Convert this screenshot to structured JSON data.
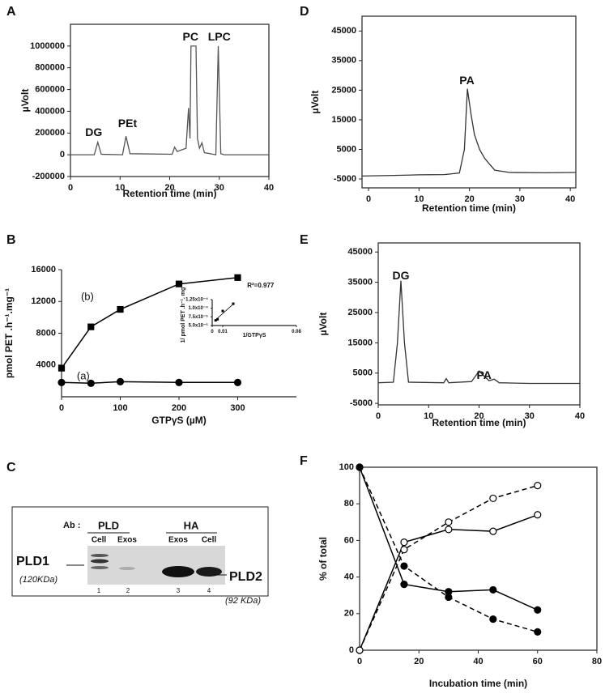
{
  "chart_data": [
    {
      "type": "line",
      "panel": "A",
      "xlabel": "Retention time (min)",
      "ylabel": "µVolt",
      "frame": true,
      "xlim": [
        0,
        40
      ],
      "ylim": [
        -200000,
        1200000
      ],
      "xticks": [
        0,
        10,
        20,
        30,
        40
      ],
      "yticks": [
        -200000,
        0,
        200000,
        400000,
        600000,
        800000,
        1000000
      ],
      "color": "#555555",
      "x": [
        0,
        4.8,
        5.5,
        6.2,
        10.5,
        11.2,
        12,
        20.5,
        21,
        21.5,
        23.3,
        23.8,
        24.1,
        24.3,
        24.6,
        25.3,
        25.6,
        26,
        26.5,
        27,
        29.3,
        29.8,
        30.3,
        31,
        40
      ],
      "values": [
        0,
        0,
        115000,
        5000,
        0,
        170000,
        10000,
        5000,
        70000,
        30000,
        60000,
        430000,
        150000,
        1000000,
        1000000,
        1000000,
        150000,
        60000,
        110000,
        20000,
        0,
        1000000,
        10000,
        0,
        0
      ],
      "annotations": [
        {
          "text": "DG",
          "x": 4.7,
          "y": 200000
        },
        {
          "text": "PEt",
          "x": 11.5,
          "y": 280000
        },
        {
          "text": "PC",
          "x": 24.2,
          "y": 1080000
        },
        {
          "text": "LPC",
          "x": 30,
          "y": 1080000
        }
      ]
    },
    {
      "type": "line",
      "panel": "B",
      "xlabel": "GTPγS  (µM)",
      "ylabel": "pmol PET .h⁻¹.mg⁻¹",
      "frame": false,
      "xlim": [
        0,
        400
      ],
      "ylim": [
        0,
        16000
      ],
      "xticks": [
        0,
        100,
        200,
        300
      ],
      "yticks": [
        4000,
        8000,
        12000,
        16000
      ],
      "x": [
        0,
        50,
        100,
        200,
        300
      ],
      "series": [
        {
          "color": "#000000",
          "marker": "square",
          "marker_fill": "#000000",
          "dash": false,
          "values": [
            3600,
            8800,
            11000,
            14200,
            15000
          ]
        },
        {
          "color": "#000000",
          "marker": "circle",
          "marker_fill": "#000000",
          "dash": false,
          "values": [
            1800,
            1700,
            1900,
            1800,
            1800
          ]
        }
      ],
      "annotations": [
        {
          "text": "(a)",
          "x": 37,
          "y": 2550
        },
        {
          "text": "(b)",
          "x": 44,
          "y": 12550
        }
      ]
    },
    {
      "type": "scatter",
      "xlabel": "1/GTPγS",
      "ylabel": "1/ pmol PET .h⁻¹. mg⁻¹",
      "frame": false,
      "xlim": [
        0,
        0.08
      ],
      "ylim": [
        5e-05,
        0.000125
      ],
      "xticks": [
        0,
        0.01,
        0.08
      ],
      "yticks": [
        {
          "value": 5e-05,
          "label": "5.0x10⁻⁵"
        },
        {
          "value": 7.5e-05,
          "label": "7.5x10⁻⁵"
        },
        {
          "value": 0.0001,
          "label": "1.0x10⁻⁴"
        },
        {
          "value": 0.000125,
          "label": "1.25x10⁻⁴"
        }
      ],
      "color": "#000000",
      "x": [
        0.0033,
        0.005,
        0.01,
        0.02
      ],
      "values": [
        6.5e-05,
        6.8e-05,
        9.2e-05,
        0.000113
      ],
      "fit": {
        "x": [
          0.002,
          0.021
        ],
        "values": [
          6.3e-05,
          0.000115
        ]
      },
      "annotations": [
        {
          "text": "R²=0.977",
          "x": 0.046,
          "y": 0.000165
        }
      ]
    },
    {
      "type": "line",
      "panel": "D",
      "xlabel": "Retention time (min)",
      "ylabel": "µVolt",
      "frame": true,
      "xlim": [
        -1.3,
        41.1
      ],
      "ylim": [
        -8000,
        50000
      ],
      "xticks": [
        0,
        10,
        20,
        30,
        40
      ],
      "yticks": [
        -5000,
        5000,
        15000,
        25000,
        35000,
        45000
      ],
      "color": "#333333",
      "x": [
        -1.3,
        5,
        10,
        15,
        18,
        19,
        19.6,
        20.3,
        21,
        22,
        23,
        24,
        25,
        28,
        35,
        41.1
      ],
      "values": [
        -4000,
        -3800,
        -3600,
        -3500,
        -3000,
        5000,
        25500,
        17000,
        10000,
        5000,
        2000,
        0,
        -2000,
        -2800,
        -2900,
        -2800
      ],
      "annotations": [
        {
          "text": "PA",
          "x": 19.5,
          "y": 28000
        }
      ]
    },
    {
      "type": "line",
      "panel": "E",
      "xlabel": "Retention time (min)",
      "ylabel": "µVolt",
      "frame": true,
      "xlim": [
        0,
        40
      ],
      "ylim": [
        -5500,
        48000
      ],
      "xticks": [
        0,
        10,
        20,
        30,
        40
      ],
      "yticks": [
        -5000,
        5000,
        15000,
        25000,
        35000,
        45000
      ],
      "color": "#333333",
      "x": [
        0,
        3,
        3.8,
        4.5,
        5.2,
        6,
        13,
        13.5,
        14,
        18.5,
        19.5,
        20,
        21,
        22,
        23,
        24,
        30,
        40
      ],
      "values": [
        1800,
        2000,
        15000,
        35500,
        15000,
        2000,
        1800,
        3200,
        1800,
        2200,
        4500,
        5700,
        4000,
        2500,
        3000,
        1800,
        1600,
        1600
      ],
      "annotations": [
        {
          "text": "DG",
          "x": 4.5,
          "y": 37000
        },
        {
          "text": "PA",
          "x": 21,
          "y": 4000
        }
      ]
    },
    {
      "type": "line",
      "panel": "F",
      "xlabel": "Incubation time (min)",
      "ylabel": "% of total",
      "frame": true,
      "xlim": [
        0,
        80
      ],
      "ylim": [
        0,
        100
      ],
      "xticks": [
        0,
        20,
        40,
        60,
        80
      ],
      "yticks": [
        0,
        20,
        40,
        60,
        80,
        100
      ],
      "x": [
        0,
        15,
        30,
        45,
        60
      ],
      "series": [
        {
          "color": "#000000",
          "marker": "circle",
          "marker_fill": "#ffffff",
          "dash": false,
          "values": [
            0,
            59,
            66,
            65,
            74
          ]
        },
        {
          "color": "#000000",
          "marker": "circle",
          "marker_fill": "#ffffff",
          "dash": true,
          "values": [
            0,
            55,
            70,
            83,
            90
          ]
        },
        {
          "color": "#000000",
          "marker": "circle",
          "marker_fill": "#000000",
          "dash": false,
          "values": [
            100,
            36,
            32,
            33,
            22
          ]
        },
        {
          "color": "#000000",
          "marker": "circle",
          "marker_fill": "#000000",
          "dash": true,
          "values": [
            100,
            46,
            29,
            17,
            10
          ]
        }
      ]
    }
  ],
  "blot": {
    "panel": "C",
    "ab": "Ab :",
    "groups": [
      "PLD",
      "HA"
    ],
    "lanes": [
      "Cell",
      "Exos",
      "Exos",
      "Cell"
    ],
    "lane_numbers": [
      "1",
      "2",
      "3",
      "4"
    ],
    "left_label": "PLD1",
    "left_size": "(120KDa)",
    "right_label": "PLD2",
    "right_size": "(92 KDa)"
  }
}
